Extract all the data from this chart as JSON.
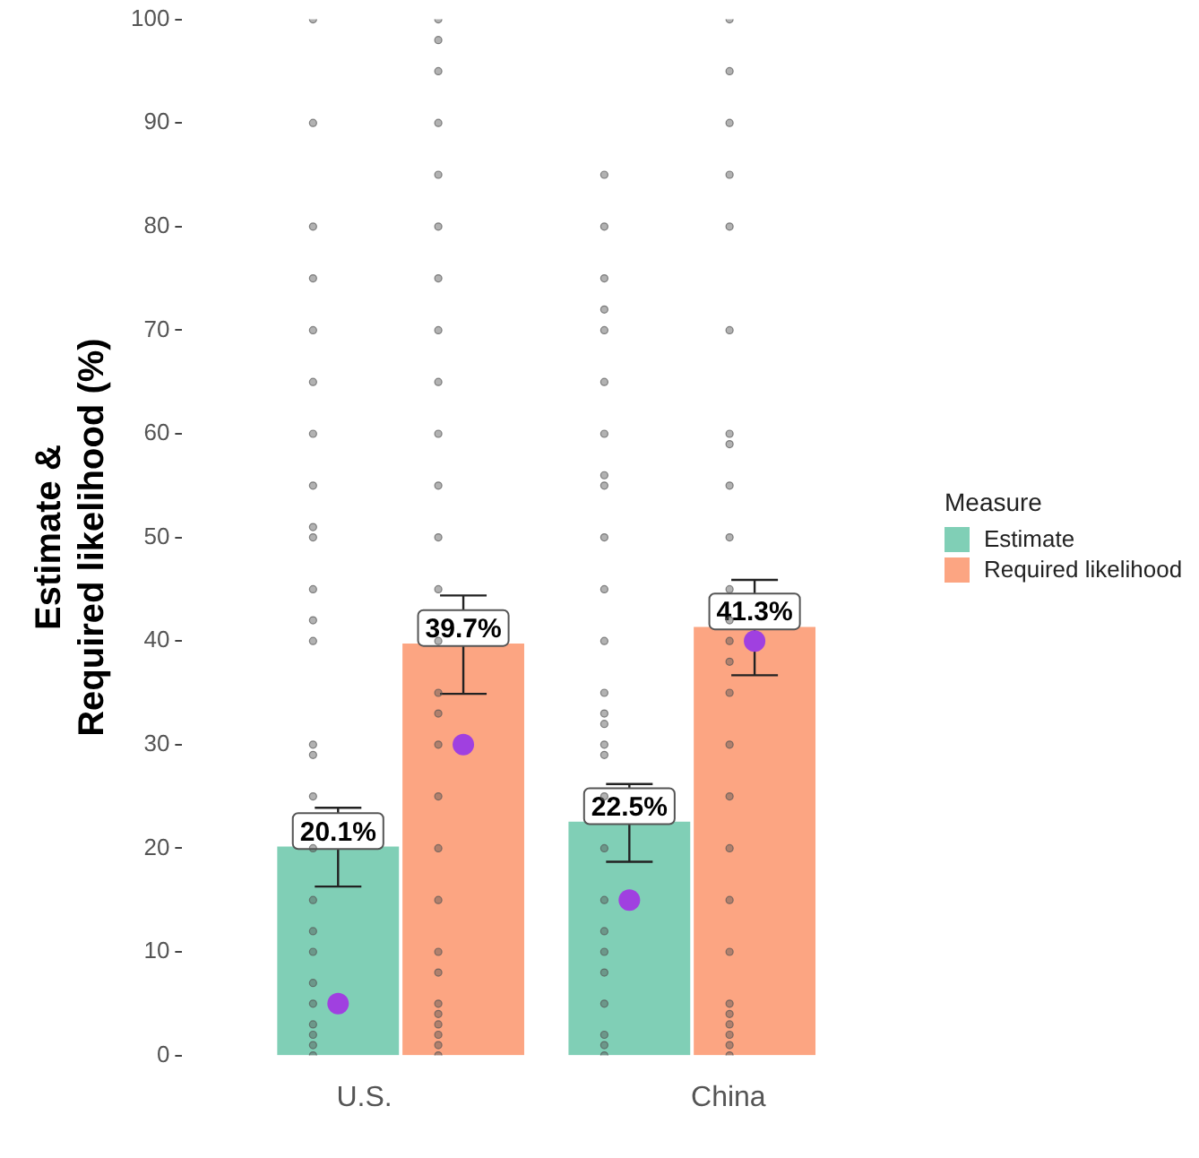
{
  "chart_data": {
    "type": "bar",
    "ylabel": "Estimate &\nRequired likelihood (%)",
    "legend_title": "Measure",
    "legend": "right",
    "grid": false,
    "data_labels": false,
    "categories": [
      "U.S.",
      "China"
    ],
    "ylim": [
      0,
      100
    ],
    "yticks": [
      0,
      10,
      20,
      30,
      40,
      50,
      60,
      70,
      80,
      90,
      100
    ],
    "series": [
      {
        "name": "Estimate",
        "color": "#80cfb6",
        "values": [
          20.1,
          22.5
        ],
        "errors": [
          [
            16.3,
            23.9
          ],
          [
            18.7,
            26.2
          ]
        ],
        "value_labels": [
          "20.1%",
          "22.5%"
        ]
      },
      {
        "name": "Required likelihood",
        "color": "#fca582",
        "values": [
          39.7,
          41.3
        ],
        "errors": [
          [
            34.9,
            44.4
          ],
          [
            36.7,
            45.9
          ]
        ],
        "value_labels": [
          "39.7%",
          "41.3%"
        ]
      },
      {
        "type": "scatter",
        "marker": "circle",
        "color": "#555555",
        "x": [
          "U.S.",
          "U.S.",
          "U.S.",
          "U.S.",
          "U.S.",
          "U.S.",
          "U.S.",
          "U.S.",
          "U.S.",
          "U.S.",
          "U.S.",
          "U.S.",
          "U.S.",
          "U.S.",
          "U.S.",
          "U.S.",
          "U.S.",
          "U.S.",
          "U.S.",
          "U.S.",
          "U.S.",
          "U.S.",
          "U.S.",
          "U.S.",
          "U.S.",
          "U.S.",
          "China",
          "China",
          "China",
          "China",
          "China",
          "China",
          "China",
          "China",
          "China",
          "China",
          "China",
          "China",
          "China",
          "China",
          "China",
          "China",
          "China",
          "China",
          "China",
          "China",
          "China",
          "China",
          "China",
          "China",
          "China",
          "China",
          "China"
        ],
        "values": [
          0,
          1,
          2,
          3,
          5,
          7,
          10,
          12,
          15,
          20,
          25,
          29,
          30,
          40,
          42,
          45,
          50,
          51,
          55,
          60,
          65,
          70,
          75,
          80,
          90,
          100,
          0,
          1,
          2,
          5,
          8,
          10,
          12,
          15,
          20,
          25,
          29,
          30,
          32,
          33,
          35,
          40,
          45,
          50,
          55,
          56,
          60,
          65,
          70,
          72,
          75,
          80,
          85
        ]
      },
      {
        "type": "scatter",
        "marker": "circle",
        "color": "#555555",
        "x": [
          "U.S.",
          "U.S.",
          "U.S.",
          "U.S.",
          "U.S.",
          "U.S.",
          "U.S.",
          "U.S.",
          "U.S.",
          "U.S.",
          "U.S.",
          "U.S.",
          "U.S.",
          "U.S.",
          "U.S.",
          "U.S.",
          "U.S.",
          "U.S.",
          "U.S.",
          "U.S.",
          "U.S.",
          "U.S.",
          "U.S.",
          "U.S.",
          "U.S.",
          "U.S.",
          "U.S.",
          "U.S.",
          "China",
          "China",
          "China",
          "China",
          "China",
          "China",
          "China",
          "China",
          "China",
          "China",
          "China",
          "China",
          "China",
          "China",
          "China",
          "China",
          "China",
          "China",
          "China",
          "China",
          "China",
          "China",
          "China",
          "China",
          "China",
          "China"
        ],
        "values": [
          0,
          1,
          2,
          3,
          4,
          5,
          8,
          10,
          15,
          20,
          25,
          30,
          33,
          35,
          40,
          45,
          50,
          55,
          60,
          65,
          70,
          75,
          80,
          85,
          90,
          95,
          98,
          100,
          0,
          1,
          2,
          3,
          4,
          5,
          10,
          15,
          20,
          25,
          30,
          35,
          38,
          40,
          42,
          45,
          50,
          55,
          59,
          60,
          70,
          80,
          85,
          90,
          95,
          100
        ]
      },
      {
        "type": "scatter",
        "marker": "circle",
        "color": "#a040e0",
        "x": [
          "U.S.",
          "China"
        ],
        "values": [
          5,
          15
        ]
      },
      {
        "type": "scatter",
        "marker": "circle",
        "color": "#a040e0",
        "x": [
          "U.S.",
          "China"
        ],
        "values": [
          30,
          40
        ]
      }
    ]
  }
}
